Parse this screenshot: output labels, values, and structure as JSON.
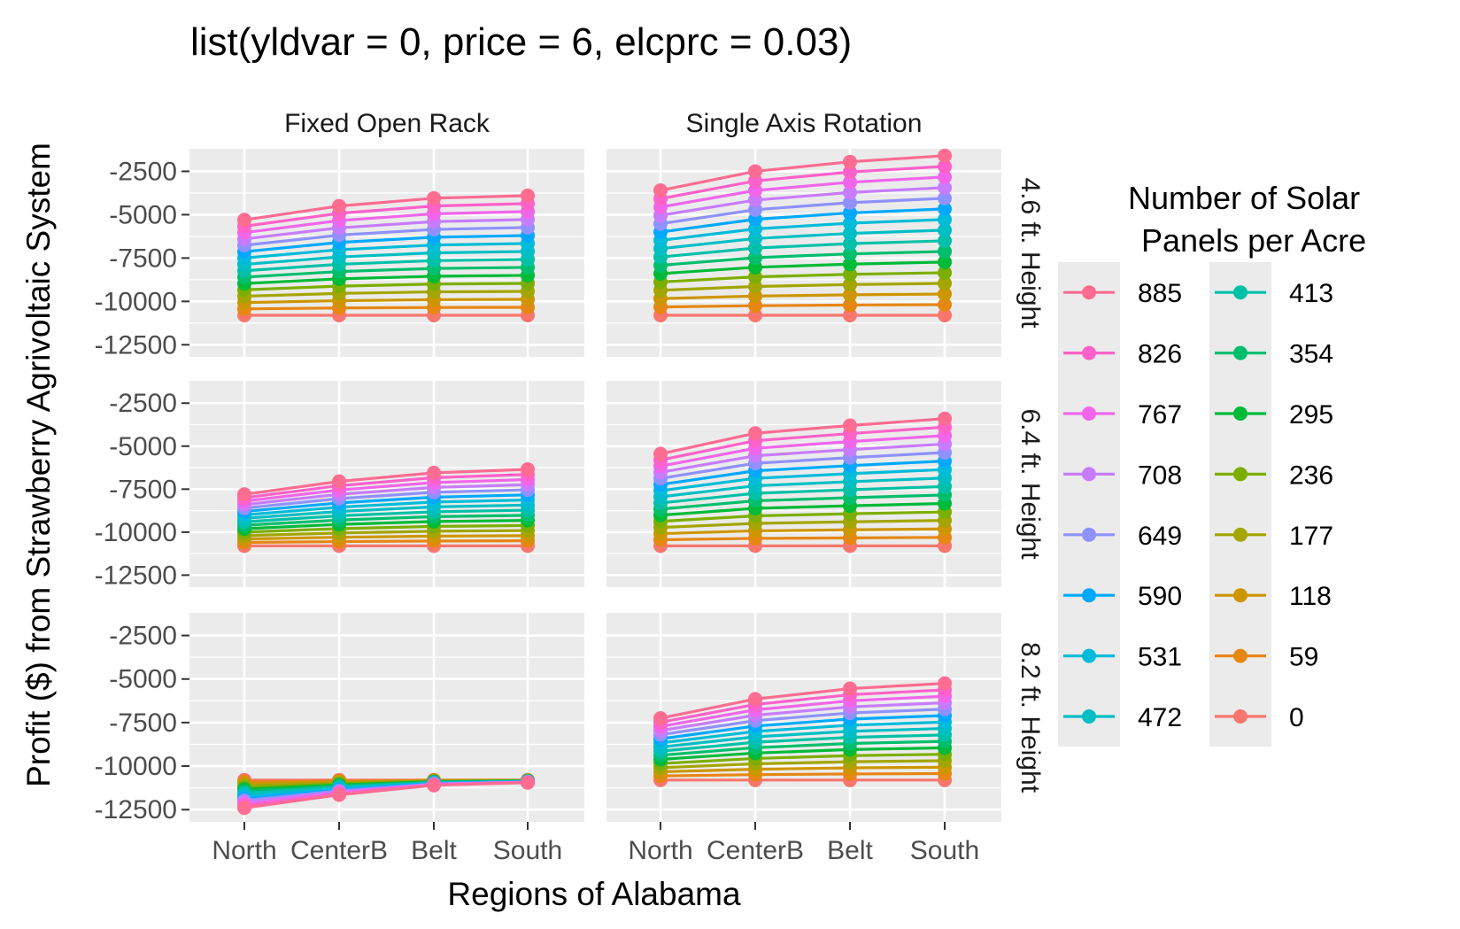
{
  "chart_data": {
    "type": "line",
    "title": "list(yldvar = 0, price = 6, elcprc = 0.03)",
    "xlabel": "Regions of Alabama",
    "ylabel": "Profit ($) from Strawberry Agrivoltaic System",
    "categories": [
      "North",
      "CenterB",
      "Belt",
      "South"
    ],
    "y_ticks": [
      -2500,
      -5000,
      -7500,
      -10000,
      -12500
    ],
    "y_tick_labels": [
      "-2500",
      "-5000",
      "-7500",
      "-10000",
      "-12500"
    ],
    "ylim": [
      -13200,
      -1200
    ],
    "col_facets": [
      "Fixed Open Rack",
      "Single Axis Rotation"
    ],
    "row_facets": [
      "4.6 ft. Height",
      "6.4 ft. Height",
      "8.2 ft. Height"
    ],
    "legend": {
      "title_lines": [
        "Number of Solar",
        "Panels per Acre"
      ],
      "entries": [
        "885",
        "826",
        "767",
        "708",
        "649",
        "590",
        "531",
        "472",
        "413",
        "354",
        "295",
        "236",
        "177",
        "118",
        "59",
        "0"
      ],
      "colors": [
        "#FF6C91",
        "#FF61C9",
        "#F066EA",
        "#C77CFF",
        "#8F91FF",
        "#00A9FF",
        "#00BCD8",
        "#00BFC4",
        "#00C1A7",
        "#00BE6C",
        "#00BA38",
        "#7CAE00",
        "#A3A500",
        "#CD9600",
        "#E68613",
        "#F8766D"
      ]
    },
    "series_levels": [
      885,
      826,
      767,
      708,
      649,
      590,
      531,
      472,
      413,
      354,
      295,
      236,
      177,
      118,
      59,
      0
    ],
    "panels": [
      {
        "col": 0,
        "row": 0,
        "base": -10800,
        "top885": [
          -5300,
          -4500,
          -4050,
          -3900
        ]
      },
      {
        "col": 1,
        "row": 0,
        "base": -10800,
        "top885": [
          -3600,
          -2500,
          -1950,
          -1600
        ]
      },
      {
        "col": 0,
        "row": 1,
        "base": -10800,
        "top885": [
          -7800,
          -7050,
          -6550,
          -6350
        ]
      },
      {
        "col": 1,
        "row": 1,
        "base": -10800,
        "top885": [
          -5450,
          -4250,
          -3800,
          -3400
        ]
      },
      {
        "col": 0,
        "row": 2,
        "base": -10800,
        "top885": [
          -12400,
          -11650,
          -11100,
          -10950
        ]
      },
      {
        "col": 1,
        "row": 2,
        "base": -10800,
        "top885": [
          -7250,
          -6150,
          -5550,
          -5250
        ]
      }
    ]
  }
}
